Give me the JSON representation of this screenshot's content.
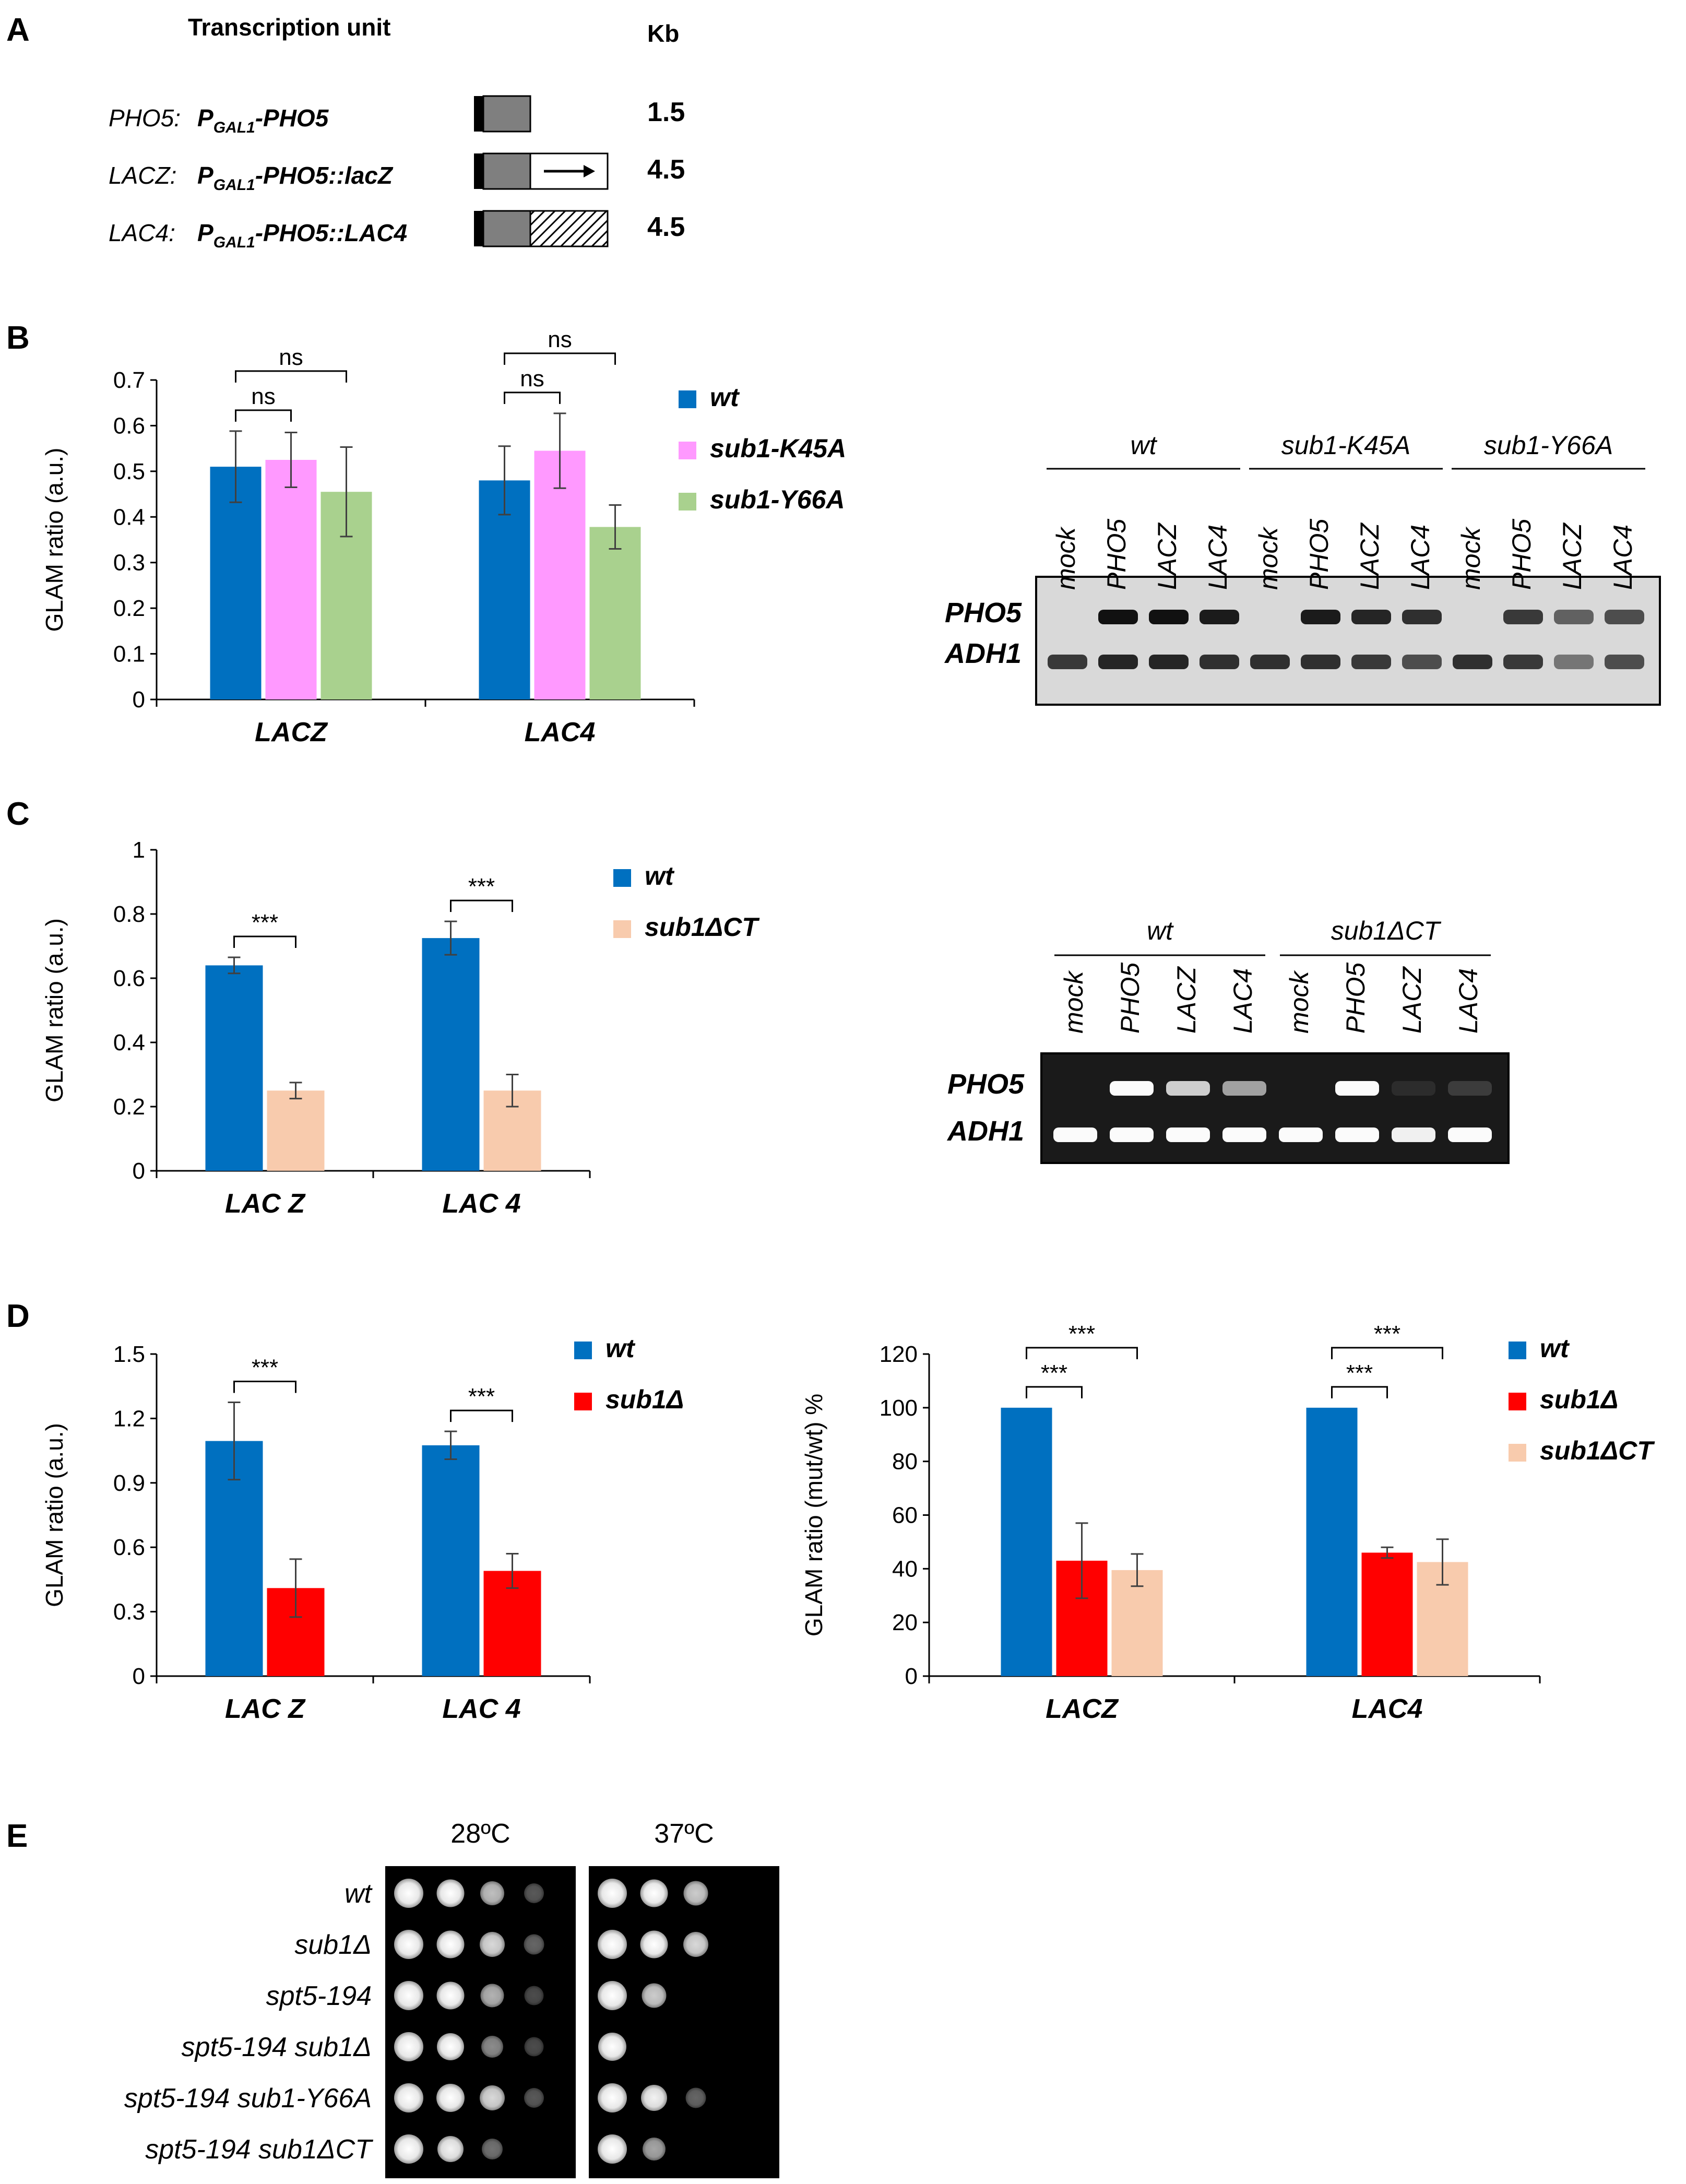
{
  "panels": {
    "A": {
      "letter": "A",
      "header_unit": "Transcription unit",
      "header_kb": "Kb",
      "rows": [
        {
          "name": "PHO5:",
          "construct": "P",
          "sub": "GAL1",
          "suffix": "-PHO5",
          "kb": "1.5",
          "box": "short"
        },
        {
          "name": "LACZ:",
          "construct": "P",
          "sub": "GAL1",
          "suffix": "-PHO5::lacZ",
          "kb": "4.5",
          "box": "arrow"
        },
        {
          "name": "LAC4:",
          "construct": "P",
          "sub": "GAL1",
          "suffix": "-PHO5::LAC4",
          "kb": "4.5",
          "box": "hatched"
        }
      ]
    },
    "B": {
      "letter": "B"
    },
    "C": {
      "letter": "C"
    },
    "D": {
      "letter": "D"
    },
    "E": {
      "letter": "E",
      "temps": [
        "28ºC",
        "37ºC"
      ],
      "strains": [
        "wt",
        "sub1Δ",
        "spt5-194",
        "spt5-194 sub1Δ",
        "spt5-194 sub1-Y66A",
        "spt5-194 sub1ΔCT"
      ],
      "growth_28": [
        [
          1,
          0.85,
          0.5,
          0.1
        ],
        [
          1,
          0.85,
          0.6,
          0.15
        ],
        [
          1,
          0.85,
          0.45,
          0.05
        ],
        [
          1,
          0.8,
          0.3,
          0.05
        ],
        [
          1,
          0.9,
          0.6,
          0.1
        ],
        [
          1,
          0.7,
          0.2,
          0
        ]
      ],
      "growth_37": [
        [
          1,
          0.85,
          0.55,
          0
        ],
        [
          1,
          0.85,
          0.6,
          0
        ],
        [
          1,
          0.55,
          0,
          0
        ],
        [
          0.9,
          0,
          0,
          0
        ],
        [
          1,
          0.7,
          0.15,
          0
        ],
        [
          1,
          0.4,
          0,
          0
        ]
      ]
    }
  },
  "chart_data": [
    {
      "id": "B",
      "type": "bar",
      "categories": [
        "LACZ",
        "LAC4"
      ],
      "series": [
        {
          "name": "wt",
          "color": "#0070c0",
          "values": [
            0.51,
            0.48
          ],
          "errors": [
            0.078,
            0.075
          ]
        },
        {
          "name": "sub1-K45A",
          "color": "#ff99ff",
          "values": [
            0.525,
            0.545
          ],
          "errors": [
            0.06,
            0.082
          ]
        },
        {
          "name": "sub1-Y66A",
          "color": "#a9d18e",
          "values": [
            0.455,
            0.378
          ],
          "errors": [
            0.098,
            0.048
          ]
        }
      ],
      "ylabel": "GLAM ratio (a.u.)",
      "ylim": [
        0,
        0.7
      ],
      "yticks": [
        "0",
        "0.1",
        "0.2",
        "0.3",
        "0.4",
        "0.5",
        "0.6",
        "0.7"
      ],
      "brackets": [
        {
          "group": 0,
          "from": 0,
          "to": 1,
          "label": "ns",
          "level": 0
        },
        {
          "group": 0,
          "from": 0,
          "to": 2,
          "label": "ns",
          "level": 1
        },
        {
          "group": 1,
          "from": 0,
          "to": 1,
          "label": "ns",
          "level": 0
        },
        {
          "group": 1,
          "from": 0,
          "to": 2,
          "label": "ns",
          "level": 1
        }
      ]
    },
    {
      "id": "C",
      "type": "bar",
      "categories": [
        "LAC Z",
        "LAC 4"
      ],
      "series": [
        {
          "name": "wt",
          "color": "#0070c0",
          "values": [
            0.64,
            0.725
          ],
          "errors": [
            0.025,
            0.052
          ]
        },
        {
          "name": "sub1ΔCT",
          "color": "#f8cbad",
          "values": [
            0.25,
            0.25
          ],
          "errors": [
            0.025,
            0.05
          ]
        }
      ],
      "ylabel": "GLAM ratio (a.u.)",
      "ylim": [
        0,
        1
      ],
      "yticks": [
        "0",
        "0.2",
        "0.4",
        "0.6",
        "0.8",
        "1"
      ],
      "brackets": [
        {
          "group": 0,
          "from": 0,
          "to": 1,
          "label": "***",
          "level": 0
        },
        {
          "group": 1,
          "from": 0,
          "to": 1,
          "label": "***",
          "level": 0
        }
      ]
    },
    {
      "id": "D1",
      "type": "bar",
      "categories": [
        "LAC Z",
        "LAC 4"
      ],
      "series": [
        {
          "name": "wt",
          "color": "#0070c0",
          "values": [
            1.095,
            1.075
          ],
          "errors": [
            0.18,
            0.065
          ]
        },
        {
          "name": "sub1Δ",
          "color": "#ff0000",
          "values": [
            0.41,
            0.49
          ],
          "errors": [
            0.135,
            0.08
          ]
        }
      ],
      "ylabel": "GLAM ratio (a.u.)",
      "ylim": [
        0,
        1.5
      ],
      "yticks": [
        "0",
        "0.3",
        "0.6",
        "0.9",
        "1.2",
        "1.5"
      ],
      "brackets": [
        {
          "group": 0,
          "from": 0,
          "to": 1,
          "label": "***",
          "level": 0
        },
        {
          "group": 1,
          "from": 0,
          "to": 1,
          "label": "***",
          "level": 0
        }
      ]
    },
    {
      "id": "D2",
      "type": "bar",
      "categories": [
        "LACZ",
        "LAC4"
      ],
      "series": [
        {
          "name": "wt",
          "color": "#0070c0",
          "values": [
            100,
            100
          ],
          "errors": [
            0,
            0
          ]
        },
        {
          "name": "sub1Δ",
          "color": "#ff0000",
          "values": [
            43,
            46
          ],
          "errors": [
            14,
            2
          ]
        },
        {
          "name": "sub1ΔCT",
          "color": "#f8cbad",
          "values": [
            39.5,
            42.5
          ],
          "errors": [
            6,
            8.5
          ]
        }
      ],
      "ylabel": "GLAM ratio (mut/wt) %",
      "ylim": [
        0,
        120
      ],
      "yticks": [
        "0",
        "20",
        "40",
        "60",
        "80",
        "100",
        "120"
      ],
      "brackets": [
        {
          "group": 0,
          "from": 0,
          "to": 1,
          "label": "***",
          "level": 0
        },
        {
          "group": 0,
          "from": 0,
          "to": 2,
          "label": "***",
          "level": 1
        },
        {
          "group": 1,
          "from": 0,
          "to": 1,
          "label": "***",
          "level": 0
        },
        {
          "group": 1,
          "from": 0,
          "to": 2,
          "label": "***",
          "level": 1
        }
      ]
    }
  ],
  "gels": [
    {
      "id": "gelB",
      "groups": [
        "wt",
        "sub1-K45A",
        "sub1-Y66A"
      ],
      "lanes": [
        "mock",
        "PHO5",
        "LACZ",
        "LAC4",
        "mock",
        "PHO5",
        "LACZ",
        "LAC4",
        "mock",
        "PHO5",
        "LACZ",
        "LAC4"
      ],
      "band_labels": [
        "PHO5",
        "ADH1"
      ],
      "pho5_intensity": [
        0,
        1,
        1,
        0.95,
        0,
        0.95,
        0.9,
        0.85,
        0,
        0.8,
        0.6,
        0.7
      ],
      "adh1_intensity": [
        0.8,
        0.9,
        0.9,
        0.85,
        0.85,
        0.85,
        0.8,
        0.7,
        0.85,
        0.8,
        0.5,
        0.7
      ]
    },
    {
      "id": "gelC",
      "groups": [
        "wt",
        "sub1ΔCT"
      ],
      "lanes": [
        "mock",
        "PHO5",
        "LACZ",
        "LAC4",
        "mock",
        "PHO5",
        "LACZ",
        "LAC4"
      ],
      "band_labels": [
        "PHO5",
        "ADH1"
      ],
      "pho5_intensity": [
        0,
        1,
        0.8,
        0.6,
        0,
        1,
        0.08,
        0.15
      ],
      "adh1_intensity": [
        1,
        1,
        1,
        1,
        1,
        1,
        0.95,
        1
      ]
    }
  ]
}
